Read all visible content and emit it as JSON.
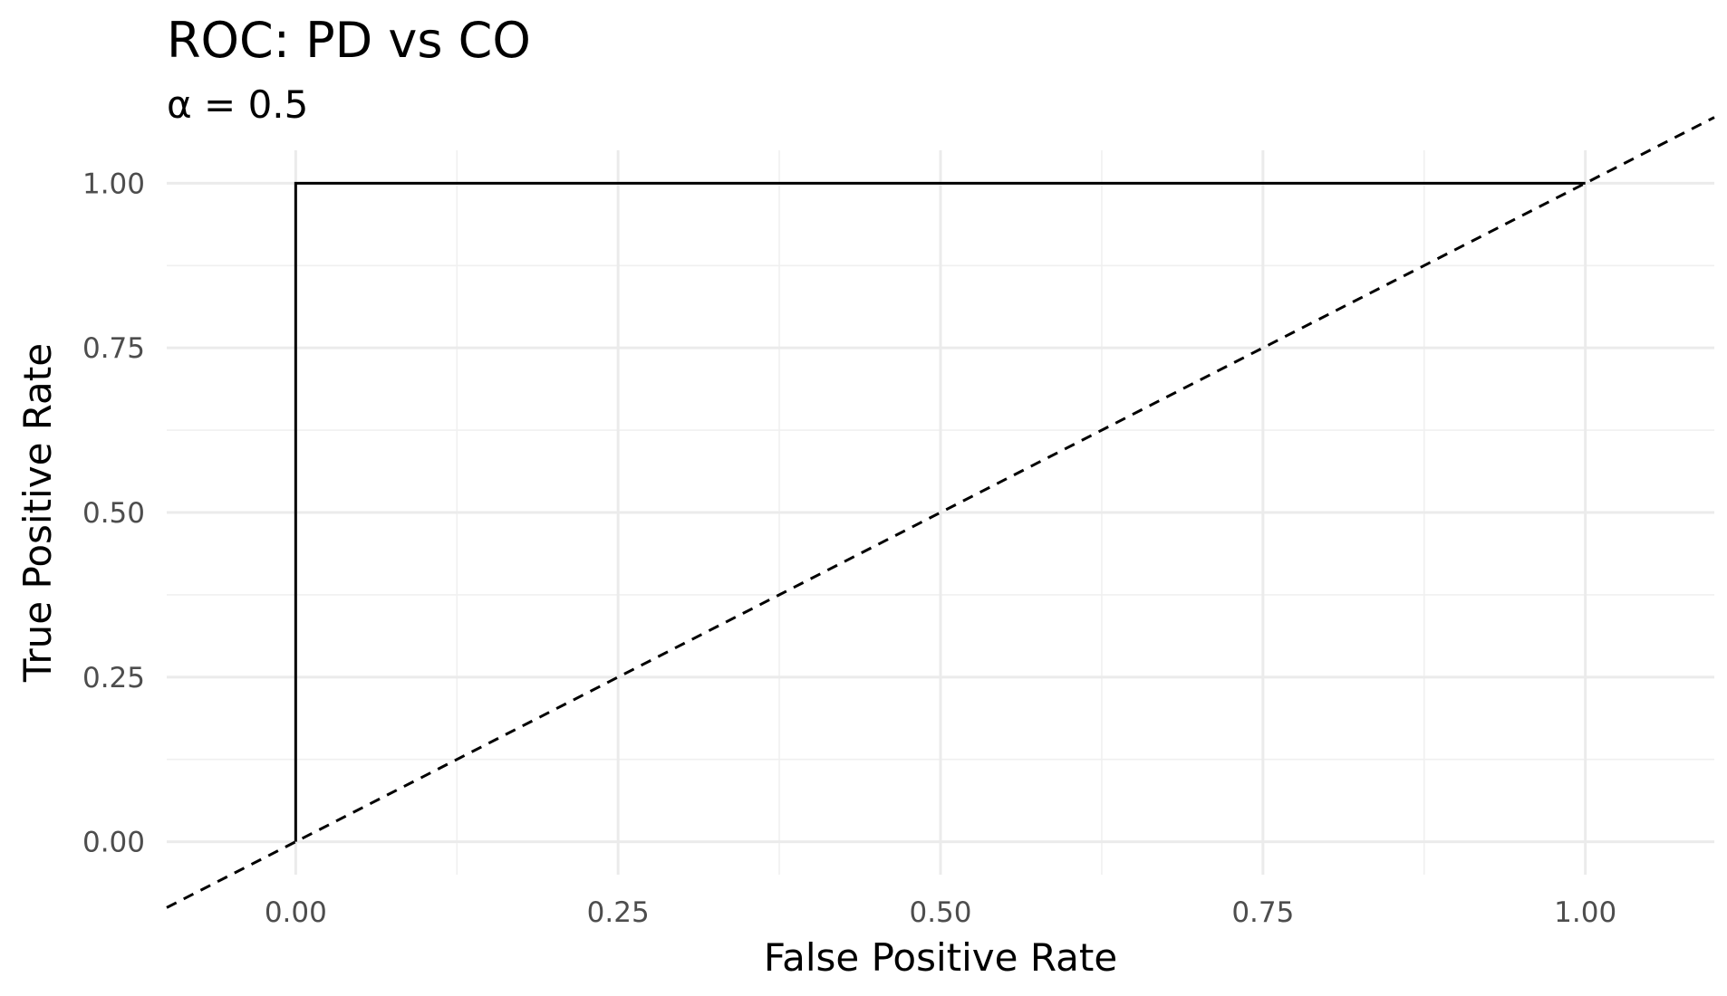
{
  "chart_data": {
    "type": "line",
    "title": "ROC: PD vs CO",
    "subtitle": "α = 0.5",
    "xlabel": "False Positive Rate",
    "ylabel": "True Positive Rate",
    "xlim": [
      -0.1,
      1.1
    ],
    "ylim": [
      -0.05,
      1.05
    ],
    "x_ticks": [
      "0.00",
      "0.25",
      "0.50",
      "0.75",
      "1.00"
    ],
    "y_ticks": [
      "0.00",
      "0.25",
      "0.50",
      "0.75",
      "1.00"
    ],
    "grid": true,
    "series": [
      {
        "style": "solid",
        "color": "#000000",
        "x": [
          0,
          0,
          1
        ],
        "y": [
          0,
          1,
          1
        ]
      },
      {
        "style": "dashed",
        "color": "#000000",
        "x": [
          -0.1,
          1.1
        ],
        "y": [
          -0.1,
          1.1
        ]
      }
    ]
  }
}
